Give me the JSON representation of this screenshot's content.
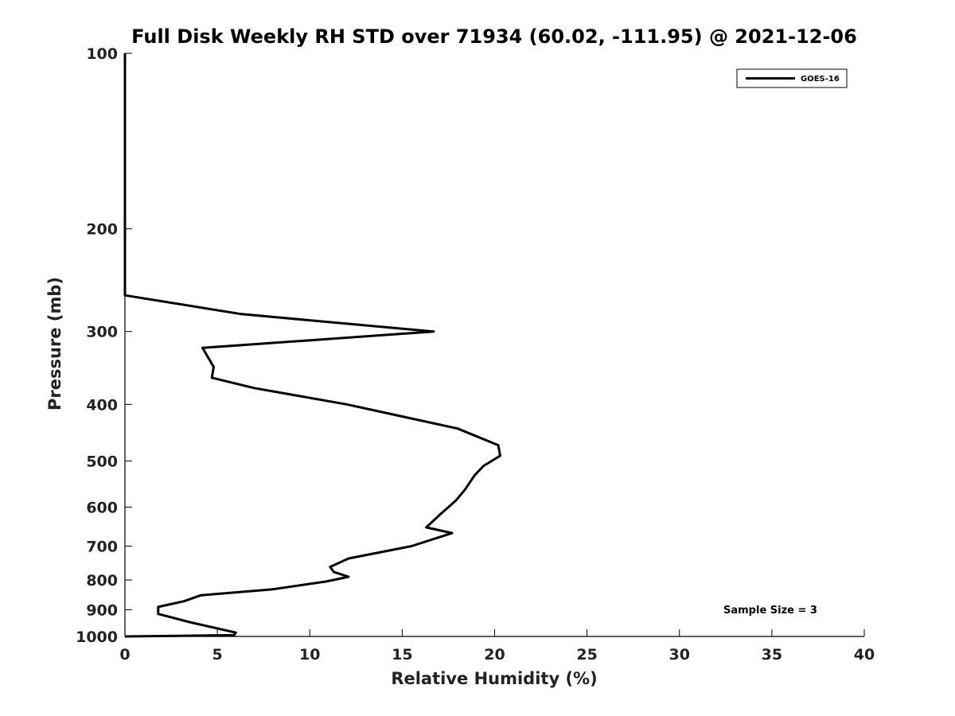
{
  "chart_data": {
    "type": "line",
    "title": "Full Disk Weekly RH STD over 71934 (60.02, -111.95) @ 2021-12-06",
    "xlabel": "Relative Humidity (%)",
    "ylabel": "Pressure (mb)",
    "xlim": [
      0,
      40
    ],
    "ylim": [
      100,
      1000
    ],
    "yscale": "log",
    "yreversed": true,
    "x_ticks": [
      0,
      5,
      10,
      15,
      20,
      25,
      30,
      35,
      40
    ],
    "x_tick_labels": [
      "0",
      "5",
      "10",
      "15",
      "20",
      "25",
      "30",
      "35",
      "40"
    ],
    "y_ticks": [
      100,
      200,
      300,
      400,
      500,
      600,
      700,
      800,
      900,
      1000
    ],
    "y_tick_labels": [
      "100",
      "200",
      "300",
      "400",
      "500",
      "600",
      "700",
      "800",
      "900",
      "1000"
    ],
    "grid": false,
    "legend": {
      "position": "top-right",
      "entries": [
        "GOES-16"
      ]
    },
    "annotation": "Sample Size = 3",
    "series": [
      {
        "name": "GOES-16",
        "color": "#000000",
        "points": [
          [
            0,
            100
          ],
          [
            0,
            150
          ],
          [
            0,
            200
          ],
          [
            0,
            260
          ],
          [
            6.3,
            280
          ],
          [
            16.7,
            300
          ],
          [
            4.2,
            320
          ],
          [
            4.8,
            345
          ],
          [
            4.7,
            360
          ],
          [
            7.0,
            375
          ],
          [
            12.0,
            400
          ],
          [
            18.0,
            440
          ],
          [
            20.2,
            470
          ],
          [
            20.3,
            490
          ],
          [
            19.4,
            510
          ],
          [
            18.9,
            530
          ],
          [
            18.4,
            560
          ],
          [
            17.9,
            585
          ],
          [
            17.0,
            620
          ],
          [
            16.3,
            650
          ],
          [
            17.7,
            665
          ],
          [
            15.5,
            700
          ],
          [
            12.1,
            735
          ],
          [
            11.1,
            760
          ],
          [
            11.3,
            775
          ],
          [
            12.1,
            790
          ],
          [
            10.9,
            805
          ],
          [
            8.0,
            830
          ],
          [
            4.1,
            850
          ],
          [
            3.2,
            870
          ],
          [
            1.8,
            890
          ],
          [
            1.8,
            915
          ],
          [
            3.5,
            945
          ],
          [
            6.0,
            985
          ],
          [
            5.9,
            995
          ],
          [
            0,
            1000
          ]
        ]
      }
    ]
  }
}
